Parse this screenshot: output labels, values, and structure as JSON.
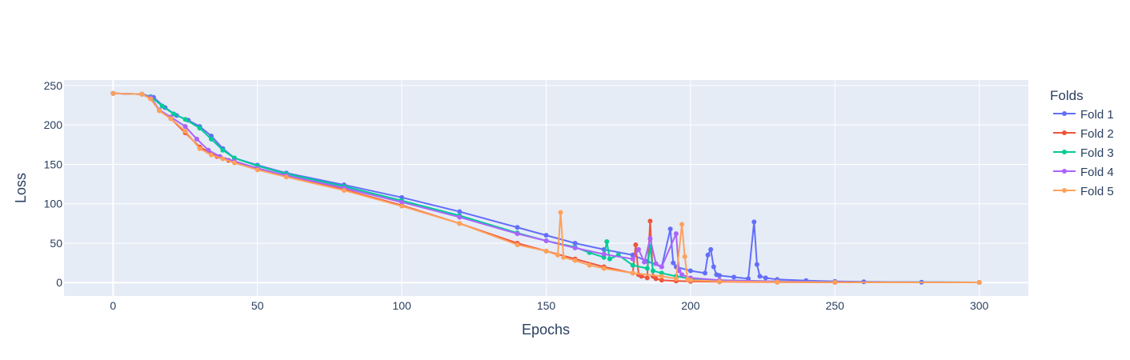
{
  "chart_data": {
    "type": "line",
    "xlabel": "Epochs",
    "ylabel": "Loss",
    "xlim": [
      -17,
      317
    ],
    "ylim": [
      -17,
      257
    ],
    "xticks": [
      0,
      50,
      100,
      150,
      200,
      250,
      300
    ],
    "yticks": [
      0,
      50,
      100,
      150,
      200,
      250
    ],
    "grid": true,
    "markers": true,
    "legend": {
      "title": "Folds",
      "placement": "right"
    },
    "series": [
      {
        "name": "Fold 1",
        "color": "#636efa",
        "x": [
          0,
          10,
          14,
          18,
          22,
          26,
          30,
          34,
          38,
          42,
          50,
          60,
          80,
          100,
          120,
          140,
          150,
          160,
          170,
          180,
          185,
          190,
          193,
          194,
          195,
          200,
          205,
          206,
          207,
          208,
          209,
          210,
          215,
          220,
          222,
          223,
          224,
          226,
          230,
          240,
          250,
          260,
          280,
          300
        ],
        "y": [
          240,
          239,
          235,
          222,
          212,
          206,
          198,
          186,
          170,
          158,
          149,
          139,
          124,
          108,
          90,
          70,
          60,
          50,
          42,
          35,
          27,
          20,
          68,
          25,
          20,
          15,
          12,
          35,
          42,
          20,
          10,
          9,
          7,
          5,
          77,
          23,
          8,
          6,
          4,
          2.5,
          1.5,
          1,
          0.5,
          0.3
        ]
      },
      {
        "name": "Fold 2",
        "color": "#ef553b",
        "x": [
          0,
          10,
          13,
          16,
          20,
          25,
          30,
          33,
          36,
          40,
          50,
          60,
          80,
          100,
          120,
          140,
          150,
          160,
          170,
          180,
          181,
          182,
          183,
          185,
          186,
          187,
          188,
          190,
          195,
          200,
          210,
          230,
          250,
          300
        ],
        "y": [
          240,
          239,
          234,
          218,
          208,
          190,
          172,
          166,
          160,
          155,
          145,
          135,
          118,
          98,
          75,
          50,
          40,
          30,
          20,
          12,
          48,
          10,
          8,
          6,
          78,
          8,
          5,
          3,
          2,
          1.5,
          1,
          0.5,
          0.3,
          0.2
        ]
      },
      {
        "name": "Fold 3",
        "color": "#00cc96",
        "x": [
          0,
          10,
          13,
          17,
          21,
          25,
          30,
          34,
          38,
          42,
          50,
          60,
          80,
          100,
          120,
          140,
          150,
          160,
          165,
          170,
          171,
          172,
          175,
          180,
          185,
          186,
          187,
          190,
          195,
          200,
          210,
          230,
          250,
          300
        ],
        "y": [
          240,
          239,
          236,
          224,
          214,
          207,
          196,
          182,
          168,
          158,
          148,
          138,
          122,
          104,
          85,
          63,
          53,
          45,
          38,
          32,
          52,
          30,
          35,
          22,
          18,
          46,
          15,
          12,
          8,
          5,
          3,
          1.5,
          0.8,
          0.3
        ]
      },
      {
        "name": "Fold 4",
        "color": "#ab63fa",
        "x": [
          0,
          10,
          13,
          16,
          20,
          25,
          29,
          33,
          37,
          42,
          50,
          60,
          80,
          100,
          120,
          140,
          150,
          160,
          170,
          180,
          182,
          184,
          186,
          188,
          190,
          195,
          196,
          197,
          200,
          210,
          230,
          250,
          300
        ],
        "y": [
          240,
          239,
          235,
          219,
          210,
          198,
          182,
          168,
          160,
          154,
          145,
          136,
          120,
          102,
          83,
          62,
          53,
          44,
          36,
          30,
          42,
          26,
          56,
          24,
          20,
          62,
          15,
          10,
          6,
          3,
          1.5,
          0.8,
          0.3
        ]
      },
      {
        "name": "Fold 5",
        "color": "#ffa15a",
        "x": [
          0,
          10,
          13,
          16,
          20,
          25,
          30,
          34,
          38,
          42,
          50,
          60,
          80,
          100,
          120,
          140,
          150,
          154,
          155,
          156,
          160,
          165,
          170,
          180,
          190,
          195,
          197,
          198,
          199,
          200,
          210,
          230,
          250,
          300
        ],
        "y": [
          240,
          239,
          233,
          218,
          208,
          192,
          170,
          162,
          157,
          152,
          143,
          134,
          117,
          97,
          75,
          48,
          40,
          35,
          89,
          32,
          28,
          22,
          18,
          12,
          8,
          5,
          74,
          33,
          4,
          3,
          1.5,
          0.8,
          0.4,
          0.2
        ]
      }
    ]
  }
}
